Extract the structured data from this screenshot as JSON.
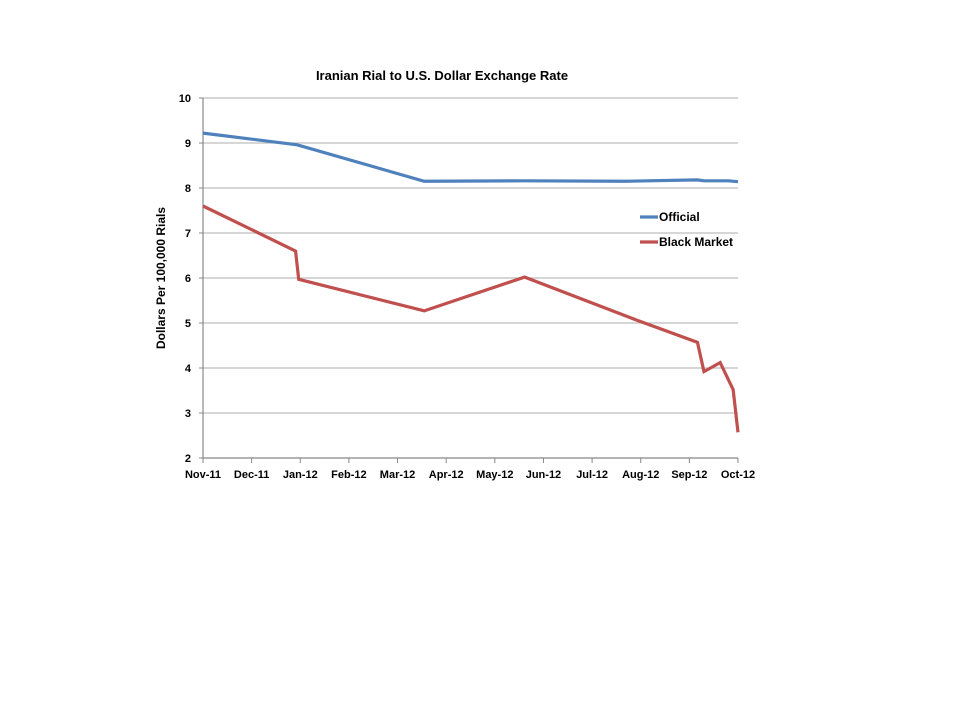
{
  "chart_data": {
    "type": "line",
    "title": "Iranian Rial to U.S. Dollar Exchange Rate",
    "xlabel": "",
    "ylabel": "Dollars Per 100,000 Rials",
    "ylim": [
      2,
      10
    ],
    "yticks": [
      "2",
      "3",
      "4",
      "5",
      "6",
      "7",
      "8",
      "9",
      "10"
    ],
    "xlim": [
      "2011-11-01",
      "2012-10-01"
    ],
    "xticks": [
      "Nov-11",
      "Dec-11",
      "Jan-12",
      "Feb-12",
      "Mar-12",
      "Apr-12",
      "May-12",
      "Jun-12",
      "Jul-12",
      "Aug-12",
      "Sep-12",
      "Oct-12"
    ],
    "grid": true,
    "legend": "right",
    "series": [
      {
        "name": "Official",
        "color": "#4F81BD",
        "points": [
          [
            "2011-11-01",
            9.22
          ],
          [
            "2011-12-30",
            8.96
          ],
          [
            "2012-03-18",
            8.15
          ],
          [
            "2012-05-20",
            8.16
          ],
          [
            "2012-07-22",
            8.15
          ],
          [
            "2012-09-06",
            8.18
          ],
          [
            "2012-09-10",
            8.16
          ],
          [
            "2012-09-25",
            8.16
          ],
          [
            "2012-10-01",
            8.14
          ]
        ]
      },
      {
        "name": "Black Market",
        "color": "#C0504D",
        "points": [
          [
            "2011-11-01",
            7.6
          ],
          [
            "2011-12-29",
            6.6
          ],
          [
            "2011-12-31",
            5.97
          ],
          [
            "2012-03-18",
            5.27
          ],
          [
            "2012-05-20",
            6.02
          ],
          [
            "2012-07-29",
            5.07
          ],
          [
            "2012-09-06",
            4.57
          ],
          [
            "2012-09-10",
            3.92
          ],
          [
            "2012-09-20",
            4.12
          ],
          [
            "2012-09-28",
            3.52
          ],
          [
            "2012-10-01",
            2.57
          ]
        ]
      }
    ]
  }
}
